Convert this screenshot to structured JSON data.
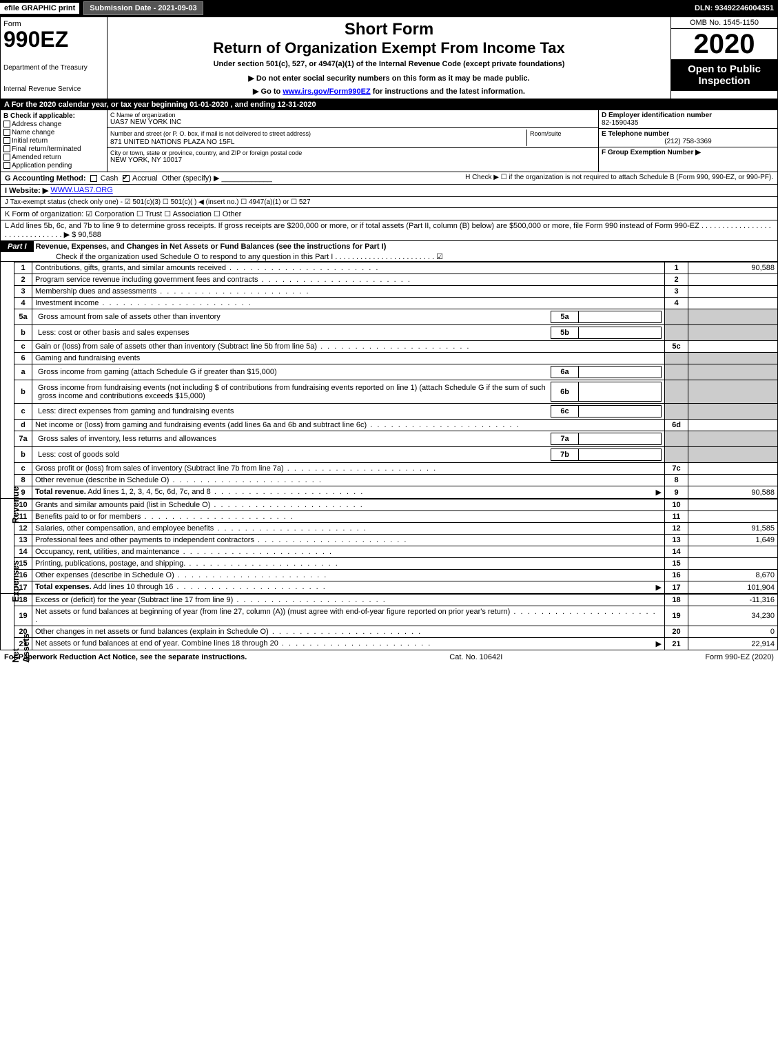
{
  "topbar": {
    "efile": "efile GRAPHIC print",
    "subdate": "Submission Date - 2021-09-03",
    "dln": "DLN: 93492246004351"
  },
  "header": {
    "form": "Form",
    "number": "990EZ",
    "dept": "Department of the Treasury",
    "irs": "Internal Revenue Service",
    "shortform": "Short Form",
    "returntitle": "Return of Organization Exempt From Income Tax",
    "under": "Under section 501(c), 527, or 4947(a)(1) of the Internal Revenue Code (except private foundations)",
    "warn": "▶ Do not enter social security numbers on this form as it may be made public.",
    "goto_pre": "▶ Go to ",
    "goto_link": "www.irs.gov/Form990EZ",
    "goto_post": " for instructions and the latest information.",
    "omb": "OMB No. 1545-1150",
    "year": "2020",
    "open": "Open to Public Inspection"
  },
  "line_a": "A For the 2020 calendar year, or tax year beginning 01-01-2020 , and ending 12-31-2020",
  "box_b": {
    "title": "B Check if applicable:",
    "items": [
      "Address change",
      "Name change",
      "Initial return",
      "Final return/terminated",
      "Amended return",
      "Application pending"
    ]
  },
  "box_c": {
    "name_lbl": "C Name of organization",
    "name": "UAS7 NEW YORK INC",
    "addr_lbl": "Number and street (or P. O. box, if mail is not delivered to street address)",
    "room_lbl": "Room/suite",
    "addr": "871 UNITED NATIONS PLAZA NO 15FL",
    "city_lbl": "City or town, state or province, country, and ZIP or foreign postal code",
    "city": "NEW YORK, NY  10017"
  },
  "box_def": {
    "d_lbl": "D Employer identification number",
    "d_val": "82-1590435",
    "e_lbl": "E Telephone number",
    "e_val": "(212) 758-3369",
    "f_lbl": "F Group Exemption Number ▶"
  },
  "line_g": {
    "lbl": "G Accounting Method:",
    "cash": "Cash",
    "accrual": "Accrual",
    "other": "Other (specify) ▶"
  },
  "line_h": "H  Check ▶  ☐  if the organization is not required to attach Schedule B (Form 990, 990-EZ, or 990-PF).",
  "line_i": {
    "lbl": "I Website: ▶",
    "val": "WWW.UAS7.ORG"
  },
  "line_j": "J Tax-exempt status (check only one) - ☑ 501(c)(3) ☐ 501(c)( ) ◀ (insert no.) ☐ 4947(a)(1) or ☐ 527",
  "line_k": "K Form of organization:  ☑ Corporation  ☐ Trust  ☐ Association  ☐ Other",
  "line_l": "L Add lines 5b, 6c, and 7b to line 9 to determine gross receipts. If gross receipts are $200,000 or more, or if total assets (Part II, column (B) below) are $500,000 or more, file Form 990 instead of Form 990-EZ . . . . . . . . . . . . . . . . . . . . . . . . . . . . . . . ▶ $ 90,588",
  "part1": {
    "label": "Part I",
    "title": "Revenue, Expenses, and Changes in Net Assets or Fund Balances (see the instructions for Part I)",
    "check": "Check if the organization used Schedule O to respond to any question in this Part I . . . . . . . . . . . . . . . . . . . . . . . . ☑"
  },
  "sidebar": {
    "revenue": "Revenue",
    "expenses": "Expenses",
    "netassets": "Net Assets"
  },
  "rows": [
    {
      "n": "1",
      "desc": "Contributions, gifts, grants, and similar amounts received",
      "ln": "1",
      "amt": "90,588"
    },
    {
      "n": "2",
      "desc": "Program service revenue including government fees and contracts",
      "ln": "2",
      "amt": ""
    },
    {
      "n": "3",
      "desc": "Membership dues and assessments",
      "ln": "3",
      "amt": ""
    },
    {
      "n": "4",
      "desc": "Investment income",
      "ln": "4",
      "amt": ""
    },
    {
      "n": "5a",
      "desc": "Gross amount from sale of assets other than inventory",
      "sub": "5a",
      "grey": true
    },
    {
      "n": "b",
      "desc": "Less: cost or other basis and sales expenses",
      "sub": "5b",
      "grey": true
    },
    {
      "n": "c",
      "desc": "Gain or (loss) from sale of assets other than inventory (Subtract line 5b from line 5a)",
      "ln": "5c",
      "amt": ""
    },
    {
      "n": "6",
      "desc": "Gaming and fundraising events",
      "greyboth": true
    },
    {
      "n": "a",
      "desc": "Gross income from gaming (attach Schedule G if greater than $15,000)",
      "sub": "6a",
      "grey": true
    },
    {
      "n": "b",
      "desc": "Gross income from fundraising events (not including $                      of contributions from fundraising events reported on line 1) (attach Schedule G if the sum of such gross income and contributions exceeds $15,000)",
      "sub": "6b",
      "grey": true
    },
    {
      "n": "c",
      "desc": "Less: direct expenses from gaming and fundraising events",
      "sub": "6c",
      "grey": true
    },
    {
      "n": "d",
      "desc": "Net income or (loss) from gaming and fundraising events (add lines 6a and 6b and subtract line 6c)",
      "ln": "6d",
      "amt": ""
    },
    {
      "n": "7a",
      "desc": "Gross sales of inventory, less returns and allowances",
      "sub": "7a",
      "grey": true
    },
    {
      "n": "b",
      "desc": "Less: cost of goods sold",
      "sub": "7b",
      "grey": true
    },
    {
      "n": "c",
      "desc": "Gross profit or (loss) from sales of inventory (Subtract line 7b from line 7a)",
      "ln": "7c",
      "amt": ""
    },
    {
      "n": "8",
      "desc": "Other revenue (describe in Schedule O)",
      "ln": "8",
      "amt": ""
    },
    {
      "n": "9",
      "desc": "Total revenue. Add lines 1, 2, 3, 4, 5c, 6d, 7c, and 8",
      "ln": "9",
      "amt": "90,588",
      "bold": true,
      "arrow": true
    }
  ],
  "exp_rows": [
    {
      "n": "10",
      "desc": "Grants and similar amounts paid (list in Schedule O)",
      "ln": "10",
      "amt": ""
    },
    {
      "n": "11",
      "desc": "Benefits paid to or for members",
      "ln": "11",
      "amt": ""
    },
    {
      "n": "12",
      "desc": "Salaries, other compensation, and employee benefits",
      "ln": "12",
      "amt": "91,585"
    },
    {
      "n": "13",
      "desc": "Professional fees and other payments to independent contractors",
      "ln": "13",
      "amt": "1,649"
    },
    {
      "n": "14",
      "desc": "Occupancy, rent, utilities, and maintenance",
      "ln": "14",
      "amt": ""
    },
    {
      "n": "15",
      "desc": "Printing, publications, postage, and shipping.",
      "ln": "15",
      "amt": ""
    },
    {
      "n": "16",
      "desc": "Other expenses (describe in Schedule O)",
      "ln": "16",
      "amt": "8,670"
    },
    {
      "n": "17",
      "desc": "Total expenses. Add lines 10 through 16",
      "ln": "17",
      "amt": "101,904",
      "bold": true,
      "arrow": true
    }
  ],
  "na_rows": [
    {
      "n": "18",
      "desc": "Excess or (deficit) for the year (Subtract line 17 from line 9)",
      "ln": "18",
      "amt": "-11,316"
    },
    {
      "n": "19",
      "desc": "Net assets or fund balances at beginning of year (from line 27, column (A)) (must agree with end-of-year figure reported on prior year's return)",
      "ln": "19",
      "amt": "34,230"
    },
    {
      "n": "20",
      "desc": "Other changes in net assets or fund balances (explain in Schedule O)",
      "ln": "20",
      "amt": "0"
    },
    {
      "n": "21",
      "desc": "Net assets or fund balances at end of year. Combine lines 18 through 20",
      "ln": "21",
      "amt": "22,914",
      "arrow": true
    }
  ],
  "footer": {
    "left": "For Paperwork Reduction Act Notice, see the separate instructions.",
    "mid": "Cat. No. 10642I",
    "right": "Form 990-EZ (2020)"
  }
}
